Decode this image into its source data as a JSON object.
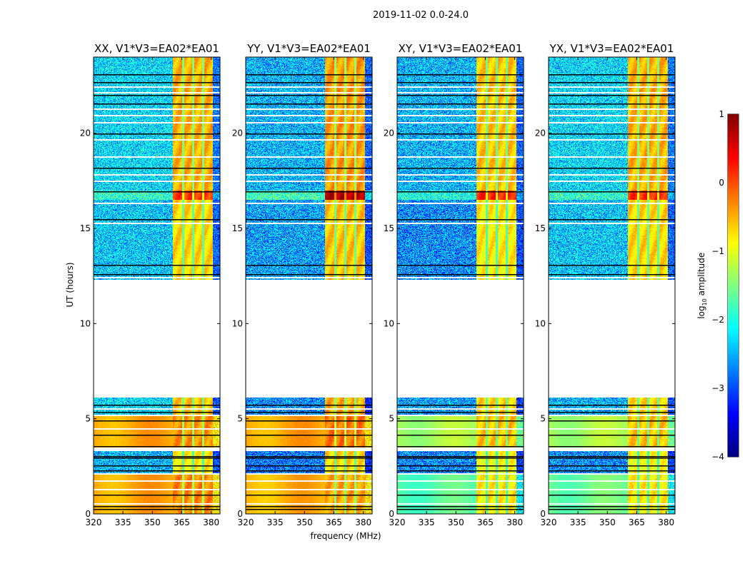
{
  "chart_data": {
    "type": "heatmap",
    "title": "2019-11-02 0.0-24.0",
    "xlabel": "frequency (MHz)",
    "ylabel": "UT (hours)",
    "xlim": [
      320,
      384.5
    ],
    "ylim": [
      0,
      24
    ],
    "xticks": [
      320,
      335,
      350,
      365,
      380
    ],
    "yticks": [
      0,
      5,
      10,
      15,
      20
    ],
    "colorbar": {
      "label_prefix": "log",
      "label_sub": "10",
      "label_suffix": " amplitude",
      "range": [
        -4,
        1
      ],
      "ticks": [
        1,
        0,
        -1,
        -2,
        -3,
        -4
      ],
      "colormap": "jet"
    },
    "frequency_regions_mhz": {
      "background": [
        320,
        360.3
      ],
      "rfi_band": [
        360.3,
        380.6
      ],
      "rfi_gaps": [
        365.6,
        370.7,
        375.8
      ],
      "edge": [
        380.6,
        384.5
      ]
    },
    "flagged_hours_white": [
      0.55,
      1.3,
      1.75,
      2.15,
      3.4,
      4.5,
      5.2,
      5.55,
      12.45,
      15.3,
      16.35,
      17.5,
      17.85,
      18.8,
      19.7,
      20.6,
      20.95,
      21.3,
      22.15,
      22.45
    ],
    "flagged_hours_black": [
      0.25,
      0.4,
      1.0,
      2.3,
      2.55,
      2.95,
      3.05,
      3.55,
      4.15,
      4.9,
      5.35,
      5.75,
      12.6,
      13.1,
      15.5,
      16.95,
      18.2,
      20.0,
      21.55,
      22.0,
      22.7,
      23.1
    ],
    "panels": [
      {
        "title": "XX, V1*V3=EA02*EA01",
        "segments": [
          {
            "t": [
              0,
              2.15
            ],
            "bg": -0.45,
            "rfi": -0.3,
            "edge": -0.8
          },
          {
            "t": [
              2.15,
              3.3
            ],
            "bg": -2.5,
            "rfi": -0.8,
            "edge": -3.0
          },
          {
            "t": [
              3.5,
              5.2
            ],
            "bg": -0.45,
            "rfi": -0.35,
            "edge": -0.8
          },
          {
            "t": [
              5.2,
              6.1
            ],
            "bg": -2.3,
            "rfi": -0.6,
            "edge": -3.0
          },
          {
            "t": [
              12.3,
              16.5
            ],
            "bg": -2.4,
            "rfi": -0.7,
            "edge": -2.9
          },
          {
            "t": [
              16.5,
              17.0
            ],
            "bg": -1.9,
            "rfi": 0.1,
            "edge": -2.5
          },
          {
            "t": [
              17.0,
              24
            ],
            "bg": -2.3,
            "rfi": -0.5,
            "edge": -2.8
          }
        ]
      },
      {
        "title": "YY, V1*V3=EA02*EA01",
        "segments": [
          {
            "t": [
              0,
              2.15
            ],
            "bg": -0.5,
            "rfi": -0.45,
            "edge": -0.8
          },
          {
            "t": [
              2.15,
              3.3
            ],
            "bg": -2.8,
            "rfi": -0.7,
            "edge": -3.2
          },
          {
            "t": [
              3.5,
              5.2
            ],
            "bg": -0.45,
            "rfi": -0.2,
            "edge": -0.8
          },
          {
            "t": [
              5.2,
              6.1
            ],
            "bg": -2.7,
            "rfi": -0.5,
            "edge": -3.2
          },
          {
            "t": [
              12.3,
              16.5
            ],
            "bg": -2.6,
            "rfi": -0.6,
            "edge": -3.0
          },
          {
            "t": [
              16.5,
              17.0
            ],
            "bg": -1.8,
            "rfi": 0.75,
            "edge": -2.2
          },
          {
            "t": [
              17.0,
              24
            ],
            "bg": -2.5,
            "rfi": -0.4,
            "edge": -2.9
          }
        ]
      },
      {
        "title": "XY, V1*V3=EA02*EA01",
        "segments": [
          {
            "t": [
              0,
              2.15
            ],
            "bg": -1.7,
            "rfi": -0.8,
            "edge": -2.2
          },
          {
            "t": [
              2.15,
              3.3
            ],
            "bg": -2.7,
            "rfi": -0.9,
            "edge": -3.1
          },
          {
            "t": [
              3.5,
              5.2
            ],
            "bg": -1.3,
            "rfi": -0.6,
            "edge": -1.6
          },
          {
            "t": [
              5.2,
              6.1
            ],
            "bg": -2.6,
            "rfi": -0.7,
            "edge": -3.1
          },
          {
            "t": [
              12.3,
              16.5
            ],
            "bg": -2.7,
            "rfi": -0.8,
            "edge": -3.0
          },
          {
            "t": [
              16.5,
              17.0
            ],
            "bg": -2.0,
            "rfi": 0.2,
            "edge": -2.6
          },
          {
            "t": [
              17.0,
              24
            ],
            "bg": -2.5,
            "rfi": -0.6,
            "edge": -2.9
          }
        ]
      },
      {
        "title": "YX, V1*V3=EA02*EA01",
        "segments": [
          {
            "t": [
              0,
              2.15
            ],
            "bg": -1.6,
            "rfi": -0.8,
            "edge": -2.2
          },
          {
            "t": [
              2.15,
              3.3
            ],
            "bg": -2.7,
            "rfi": -0.9,
            "edge": -3.1
          },
          {
            "t": [
              3.5,
              5.2
            ],
            "bg": -1.3,
            "rfi": -0.6,
            "edge": -1.6
          },
          {
            "t": [
              5.2,
              6.1
            ],
            "bg": -2.5,
            "rfi": -0.7,
            "edge": -3.0
          },
          {
            "t": [
              12.3,
              16.5
            ],
            "bg": -2.4,
            "rfi": -0.7,
            "edge": -2.9
          },
          {
            "t": [
              16.5,
              17.0
            ],
            "bg": -1.9,
            "rfi": 0.15,
            "edge": -2.5
          },
          {
            "t": [
              17.0,
              24
            ],
            "bg": -2.3,
            "rfi": -0.5,
            "edge": -2.8
          }
        ]
      }
    ]
  }
}
